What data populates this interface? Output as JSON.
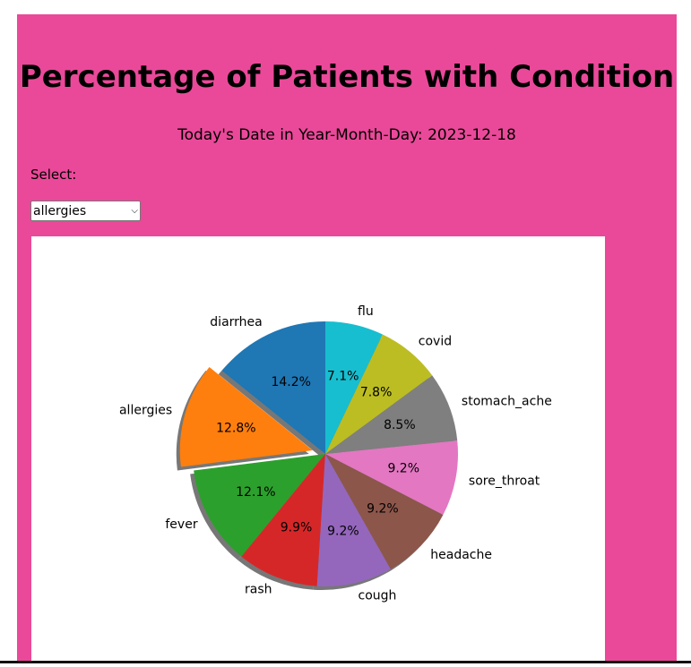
{
  "page": {
    "title": "Percentage of Patients with Condition",
    "date_line": "Today's Date in Year-Month-Day: 2023-12-18",
    "select_label": "Select:",
    "select_value": "allergies"
  },
  "chart_data": {
    "type": "pie",
    "title": "",
    "start_angle_deg": 90,
    "direction": "counterclockwise",
    "shadow": true,
    "exploded": "allergies",
    "explode_fraction": 0.1,
    "slices": [
      {
        "label": "diarrhea",
        "value": 14.2,
        "pct_label": "14.2%",
        "color": "#1f77b4"
      },
      {
        "label": "allergies",
        "value": 12.8,
        "pct_label": "12.8%",
        "color": "#ff7f0e"
      },
      {
        "label": "fever",
        "value": 12.1,
        "pct_label": "12.1%",
        "color": "#2ca02c"
      },
      {
        "label": "rash",
        "value": 9.9,
        "pct_label": "9.9%",
        "color": "#d62728"
      },
      {
        "label": "cough",
        "value": 9.2,
        "pct_label": "9.2%",
        "color": "#9467bd"
      },
      {
        "label": "headache",
        "value": 9.2,
        "pct_label": "9.2%",
        "color": "#8c564b"
      },
      {
        "label": "sore_throat",
        "value": 9.2,
        "pct_label": "9.2%",
        "color": "#e377c2"
      },
      {
        "label": "stomach_ache",
        "value": 8.5,
        "pct_label": "8.5%",
        "color": "#7f7f7f"
      },
      {
        "label": "covid",
        "value": 7.8,
        "pct_label": "7.8%",
        "color": "#bcbd22"
      },
      {
        "label": "flu",
        "value": 7.1,
        "pct_label": "7.1%",
        "color": "#17becf"
      }
    ]
  }
}
